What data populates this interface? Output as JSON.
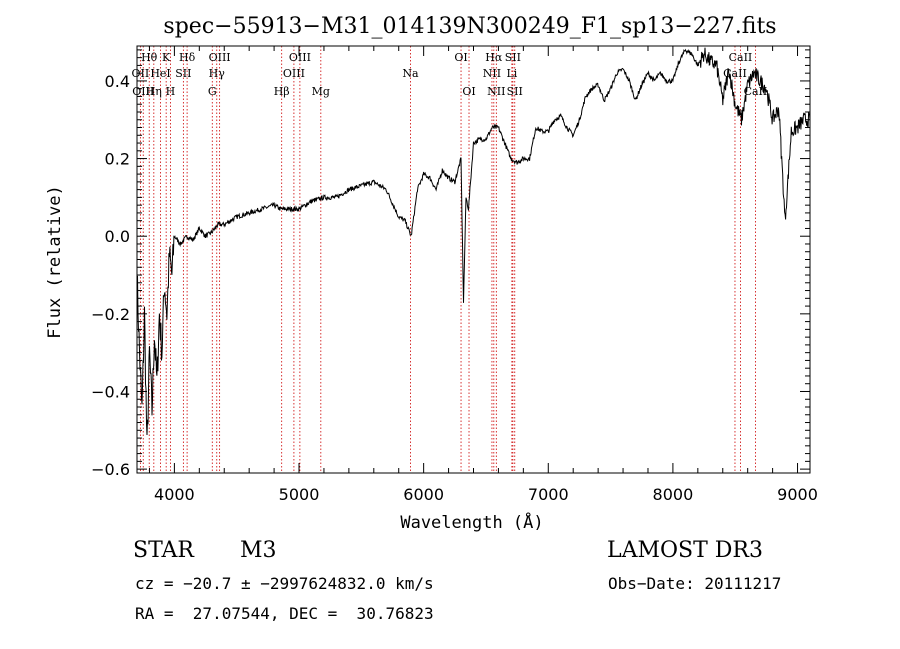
{
  "chart_data": {
    "type": "line",
    "title": "spec−55913−M31_014139N300249_F1_sp13−227.fits",
    "xlabel": "Wavelength (Å)",
    "ylabel": "Flux (relative)",
    "xlim": [
      3700,
      9100
    ],
    "ylim": [
      -0.61,
      0.49
    ],
    "x_ticks": [
      4000,
      5000,
      6000,
      7000,
      8000,
      9000
    ],
    "x_tick_labels": [
      "4000",
      "5000",
      "6000",
      "7000",
      "8000",
      "9000"
    ],
    "y_ticks": [
      -0.6,
      -0.4,
      -0.2,
      0.0,
      0.2,
      0.4
    ],
    "y_tick_labels": [
      "−0.6",
      "−0.4",
      "−0.2",
      "0.0",
      "0.2",
      "0.4"
    ],
    "grid": false,
    "legend": "none",
    "line_color": "#000000",
    "marker_color": "#cc0000",
    "series": [
      {
        "x": [
          3700,
          3720,
          3740,
          3760,
          3780,
          3800,
          3820,
          3840,
          3860,
          3880,
          3900,
          3920,
          3940,
          3960,
          3980,
          4000,
          4050,
          4100,
          4150,
          4200,
          4250,
          4300,
          4350,
          4400,
          4500,
          4600,
          4700,
          4800,
          4850,
          4900,
          5000,
          5100,
          5200,
          5300,
          5400,
          5500,
          5600,
          5700,
          5800,
          5850,
          5900,
          5950,
          6000,
          6050,
          6100,
          6150,
          6200,
          6250,
          6300,
          6320,
          6340,
          6360,
          6400,
          6450,
          6500,
          6550,
          6600,
          6650,
          6700,
          6750,
          6800,
          6850,
          6900,
          6950,
          7000,
          7050,
          7100,
          7150,
          7200,
          7250,
          7300,
          7350,
          7400,
          7450,
          7500,
          7550,
          7600,
          7650,
          7700,
          7750,
          7800,
          7850,
          7900,
          7950,
          8000,
          8050,
          8100,
          8150,
          8200,
          8250,
          8300,
          8350,
          8400,
          8450,
          8500,
          8550,
          8600,
          8650,
          8700,
          8750,
          8800,
          8850,
          8900,
          8950,
          9000,
          9050,
          9100
        ],
        "y": [
          -0.1,
          -0.3,
          -0.45,
          -0.2,
          -0.55,
          -0.3,
          -0.45,
          -0.25,
          -0.38,
          -0.2,
          -0.3,
          -0.12,
          -0.2,
          -0.05,
          -0.1,
          0.0,
          -0.02,
          0.0,
          -0.01,
          0.02,
          0.0,
          0.01,
          0.03,
          0.03,
          0.05,
          0.06,
          0.07,
          0.08,
          0.07,
          0.07,
          0.07,
          0.09,
          0.1,
          0.1,
          0.12,
          0.13,
          0.14,
          0.12,
          0.05,
          0.04,
          0.0,
          0.12,
          0.16,
          0.15,
          0.12,
          0.17,
          0.15,
          0.14,
          0.2,
          -0.17,
          0.1,
          0.07,
          0.24,
          0.25,
          0.25,
          0.28,
          0.28,
          0.24,
          0.2,
          0.19,
          0.2,
          0.2,
          0.28,
          0.27,
          0.27,
          0.3,
          0.31,
          0.28,
          0.26,
          0.3,
          0.36,
          0.38,
          0.39,
          0.35,
          0.38,
          0.42,
          0.43,
          0.4,
          0.35,
          0.39,
          0.42,
          0.4,
          0.42,
          0.4,
          0.4,
          0.45,
          0.48,
          0.47,
          0.44,
          0.47,
          0.45,
          0.44,
          0.35,
          0.43,
          0.34,
          0.3,
          0.39,
          0.42,
          0.4,
          0.38,
          0.3,
          0.33,
          0.04,
          0.27,
          0.28,
          0.3,
          0.3
        ]
      }
    ],
    "annotations": [
      {
        "label": "Hθ",
        "x": 3798,
        "row": 1
      },
      {
        "label": "OII",
        "x": 3727,
        "row": 2
      },
      {
        "label": "OIII",
        "x": 3750,
        "row": 3
      },
      {
        "label": "Hη",
        "x": 3835,
        "row": 3
      },
      {
        "label": "K",
        "x": 3934,
        "row": 1
      },
      {
        "label": "HeI",
        "x": 3889,
        "row": 2
      },
      {
        "label": "H",
        "x": 3968,
        "row": 3
      },
      {
        "label": "SII",
        "x": 4072,
        "row": 2
      },
      {
        "label": "Hδ",
        "x": 4102,
        "row": 1
      },
      {
        "label": "OIII",
        "x": 4363,
        "row": 1
      },
      {
        "label": "Hγ",
        "x": 4340,
        "row": 2
      },
      {
        "label": "G",
        "x": 4304,
        "row": 3
      },
      {
        "label": "Hβ",
        "x": 4861,
        "row": 3
      },
      {
        "label": "OIII",
        "x": 5007,
        "row": 1
      },
      {
        "label": "OIII",
        "x": 4959,
        "row": 2
      },
      {
        "label": "Mg",
        "x": 5175,
        "row": 3
      },
      {
        "label": "Na",
        "x": 5894,
        "row": 2
      },
      {
        "label": "OI",
        "x": 6300,
        "row": 1
      },
      {
        "label": "OI",
        "x": 6364,
        "row": 3
      },
      {
        "label": "Hα",
        "x": 6563,
        "row": 1
      },
      {
        "label": "SII",
        "x": 6716,
        "row": 1
      },
      {
        "label": "NII",
        "x": 6548,
        "row": 2
      },
      {
        "label": "Li",
        "x": 6708,
        "row": 2
      },
      {
        "label": "NII",
        "x": 6583,
        "row": 3
      },
      {
        "label": "SII",
        "x": 6731,
        "row": 3
      },
      {
        "label": "CaII",
        "x": 8542,
        "row": 1
      },
      {
        "label": "CaII",
        "x": 8498,
        "row": 2
      },
      {
        "label": "CaII",
        "x": 8662,
        "row": 3
      }
    ],
    "marker_lines_x": [
      3727,
      3750,
      3798,
      3835,
      3889,
      3934,
      3968,
      4072,
      4102,
      4304,
      4340,
      4363,
      4861,
      4959,
      5007,
      5175,
      5894,
      6300,
      6364,
      6548,
      6563,
      6583,
      6708,
      6716,
      6731,
      8498,
      8542,
      8662
    ]
  },
  "info": {
    "object_class": "STAR",
    "subclass": "M3",
    "survey": "LAMOST DR3",
    "cz_line": "cz = −20.7 ± −2997624832.0 km/s",
    "obs_date": "Obs−Date: 20111217",
    "coords": "RA =  27.07544, DEC =  30.76823"
  }
}
